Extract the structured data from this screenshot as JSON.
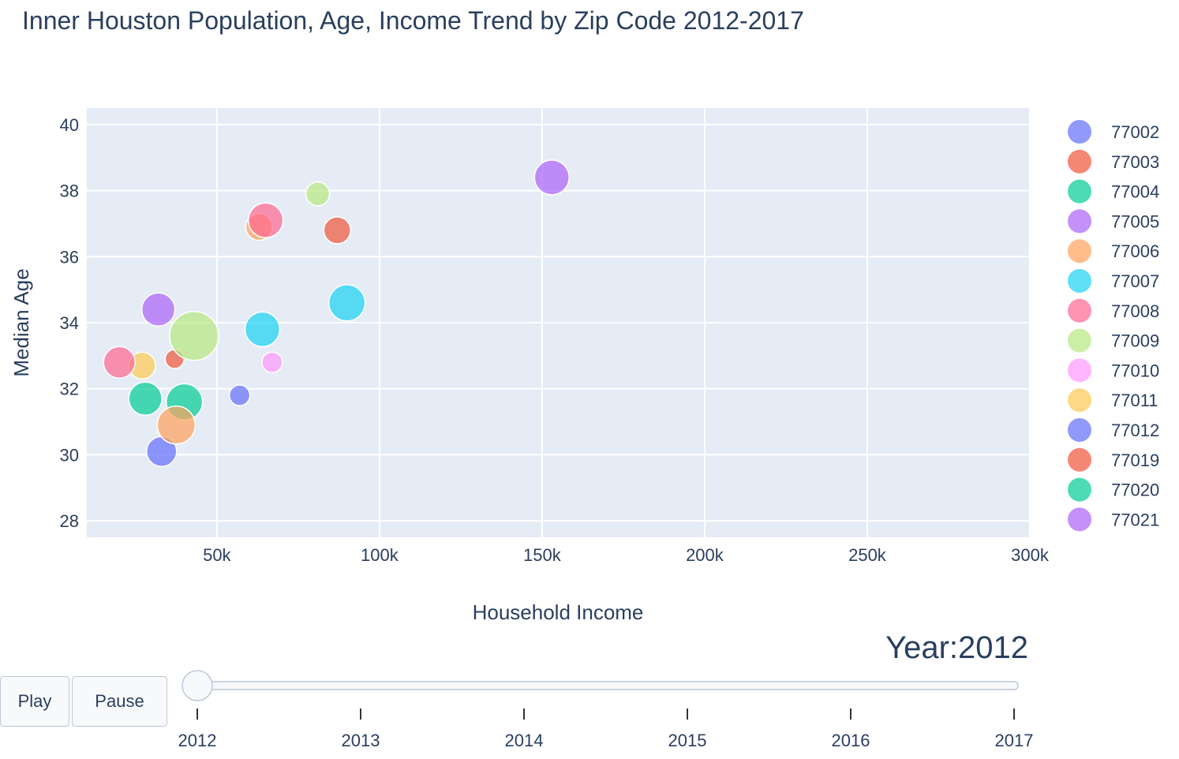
{
  "chart_data": {
    "type": "scatter",
    "title": "Inner Houston Population, Age, Income Trend by Zip Code 2012-2017",
    "xlabel": "Household Income",
    "ylabel": "Median Age",
    "xlim": [
      10000,
      300000
    ],
    "ylim": [
      27.5,
      40.5
    ],
    "x_ticks": [
      50000,
      100000,
      150000,
      200000,
      250000,
      300000
    ],
    "x_tick_labels": [
      "50k",
      "100k",
      "150k",
      "200k",
      "250k",
      "300k"
    ],
    "y_ticks": [
      28,
      30,
      32,
      34,
      36,
      38,
      40
    ],
    "y_tick_labels": [
      "28",
      "30",
      "32",
      "34",
      "36",
      "38",
      "40"
    ],
    "grid": true,
    "legend_position": "right",
    "series": [
      {
        "name": "77002",
        "color": "#636efa",
        "x": 57000,
        "y": 31.8,
        "size": 13
      },
      {
        "name": "77003",
        "color": "#EF553B",
        "x": 37000,
        "y": 32.9,
        "size": 12
      },
      {
        "name": "77004",
        "color": "#00cc96",
        "x": 28000,
        "y": 31.7,
        "size": 21
      },
      {
        "name": "77005",
        "color": "#ab63fa",
        "x": 153000,
        "y": 38.4,
        "size": 22
      },
      {
        "name": "77006",
        "color": "#FFA15A",
        "x": 63000,
        "y": 36.9,
        "size": 17
      },
      {
        "name": "77007",
        "color": "#19d3f3",
        "x": 90000,
        "y": 34.6,
        "size": 23
      },
      {
        "name": "77008",
        "color": "#FF6692",
        "x": 65000,
        "y": 37.1,
        "size": 22
      },
      {
        "name": "77009",
        "color": "#B6E880",
        "x": 81000,
        "y": 37.9,
        "size": 15
      },
      {
        "name": "77010",
        "color": "#FF97FF",
        "x": 67000,
        "y": 32.8,
        "size": 13
      },
      {
        "name": "77011",
        "color": "#FECB52",
        "x": 27000,
        "y": 32.7,
        "size": 17
      },
      {
        "name": "77012",
        "color": "#636efa",
        "x": 33000,
        "y": 30.1,
        "size": 19
      },
      {
        "name": "77019",
        "color": "#EF553B",
        "x": 87000,
        "y": 36.8,
        "size": 17
      },
      {
        "name": "77020",
        "color": "#00cc96",
        "x": 40000,
        "y": 31.6,
        "size": 23
      },
      {
        "name": "77021",
        "color": "#ab63fa",
        "x": 32000,
        "y": 34.4,
        "size": 21
      },
      {
        "name": "77006",
        "color": "#FFA15A",
        "x": 37500,
        "y": 30.9,
        "size": 24
      },
      {
        "name": "77008",
        "color": "#FF6692",
        "x": 20000,
        "y": 32.8,
        "size": 20
      },
      {
        "name": "77009",
        "color": "#B6E880",
        "x": 43000,
        "y": 33.6,
        "size": 31
      },
      {
        "name": "77007",
        "color": "#19d3f3",
        "x": 64000,
        "y": 33.8,
        "size": 22
      }
    ]
  },
  "legend_items": [
    "77002",
    "77003",
    "77004",
    "77005",
    "77006",
    "77007",
    "77008",
    "77009",
    "77010",
    "77011",
    "77012",
    "77019",
    "77020",
    "77021"
  ],
  "legend_colors": [
    "#636efa",
    "#EF553B",
    "#00cc96",
    "#ab63fa",
    "#FFA15A",
    "#19d3f3",
    "#FF6692",
    "#B6E880",
    "#FF97FF",
    "#FECB52",
    "#636efa",
    "#EF553B",
    "#00cc96",
    "#ab63fa"
  ],
  "controls": {
    "play_label": "Play",
    "pause_label": "Pause",
    "current_value_prefix": "Year:",
    "current_value": "2012",
    "slider_steps": [
      "2012",
      "2013",
      "2014",
      "2015",
      "2016",
      "2017"
    ],
    "slider_active_index": 0
  }
}
